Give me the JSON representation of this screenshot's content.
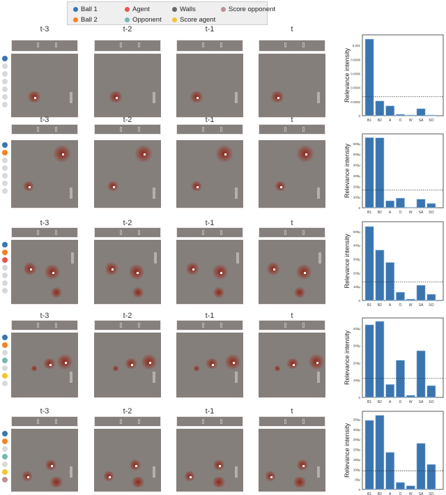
{
  "legend": [
    {
      "label": "Ball 1",
      "color": "#3a75b0"
    },
    {
      "label": "Ball 2",
      "color": "#f58220"
    },
    {
      "label": "Agent",
      "color": "#e8554f"
    },
    {
      "label": "Opponent",
      "color": "#76b7b2"
    },
    {
      "label": "Walls",
      "color": "#666666"
    },
    {
      "label": "Score agent",
      "color": "#f4c430"
    },
    {
      "label": "Score opponent",
      "color": "#c08e92"
    }
  ],
  "inactive_color": "#d9d9d9",
  "frame_labels": [
    "t-3",
    "t-2",
    "t-1",
    "t"
  ],
  "rows": [
    {
      "active": [
        true,
        false,
        false,
        false,
        false,
        false,
        false
      ]
    },
    {
      "active": [
        true,
        true,
        false,
        false,
        false,
        false,
        false
      ]
    },
    {
      "active": [
        true,
        true,
        true,
        false,
        false,
        false,
        false
      ]
    },
    {
      "active": [
        true,
        true,
        false,
        true,
        false,
        true,
        false
      ]
    },
    {
      "active": [
        true,
        true,
        false,
        true,
        false,
        true,
        true
      ]
    }
  ],
  "chart_data": [
    {
      "type": "bar",
      "ylabel": "Relevance intensity",
      "categories": [
        "B1",
        "B2",
        "A",
        "O",
        "W",
        "SA",
        "SO"
      ],
      "values": [
        0.00109,
        0.00021,
        0.00014,
        2e-05,
        1e-05,
        0.0001,
        1e-05
      ],
      "threshold": 0.00027,
      "ylim": [
        0,
        0.00115
      ],
      "yticks": [
        0,
        0.0002,
        0.0004,
        0.0006,
        0.0008,
        0.001
      ],
      "ytick_labels": [
        "0",
        "0.0002",
        "0.0004",
        "0.0006",
        "0.0008",
        "0.001"
      ],
      "color": "#3a75b0"
    },
    {
      "type": "bar",
      "ylabel": "Relevance intensity",
      "categories": [
        "B1",
        "B2",
        "A",
        "O",
        "W",
        "SA",
        "SO"
      ],
      "values": [
        655,
        653,
        65,
        90,
        5,
        80,
        40
      ],
      "threshold": 165,
      "ylim": [
        0,
        690
      ],
      "yticks": [
        0,
        100,
        200,
        300,
        400,
        500,
        600
      ],
      "ytick_labels": [
        "0",
        "100µ",
        "200µ",
        "300µ",
        "400µ",
        "500µ",
        "600µ"
      ],
      "color": "#3a75b0"
    },
    {
      "type": "bar",
      "ylabel": "Relevance intensity",
      "categories": [
        "B1",
        "B2",
        "A",
        "O",
        "W",
        "SA",
        "SO"
      ],
      "values": [
        535,
        365,
        275,
        60,
        10,
        110,
        45
      ],
      "threshold": 135,
      "ylim": [
        0,
        570
      ],
      "yticks": [
        0,
        100,
        200,
        300,
        400,
        500
      ],
      "ytick_labels": [
        "0",
        "100µ",
        "200µ",
        "300µ",
        "400µ",
        "500µ"
      ],
      "color": "#3a75b0"
    },
    {
      "type": "bar",
      "ylabel": "Relevance intensity",
      "categories": [
        "B1",
        "B2",
        "A",
        "O",
        "W",
        "SA",
        "SO"
      ],
      "values": [
        420,
        440,
        75,
        215,
        12,
        270,
        68
      ],
      "threshold": 110,
      "ylim": [
        0,
        460
      ],
      "yticks": [
        0,
        100,
        200,
        300,
        400
      ],
      "ytick_labels": [
        "0",
        "100µ",
        "200µ",
        "300µ",
        "400µ"
      ],
      "color": "#3a75b0"
    },
    {
      "type": "bar",
      "ylabel": "Relevance intensity",
      "categories": [
        "B1",
        "B2",
        "A",
        "O",
        "W",
        "SA",
        "SO"
      ],
      "values": [
        345,
        370,
        185,
        35,
        18,
        230,
        125
      ],
      "threshold": 93,
      "ylim": [
        0,
        390
      ],
      "yticks": [
        0,
        50,
        100,
        150,
        200,
        250,
        300,
        350
      ],
      "ytick_labels": [
        "0",
        "50µ",
        "100µ",
        "150µ",
        "200µ",
        "250µ",
        "300µ",
        "350µ"
      ],
      "color": "#3a75b0"
    }
  ]
}
